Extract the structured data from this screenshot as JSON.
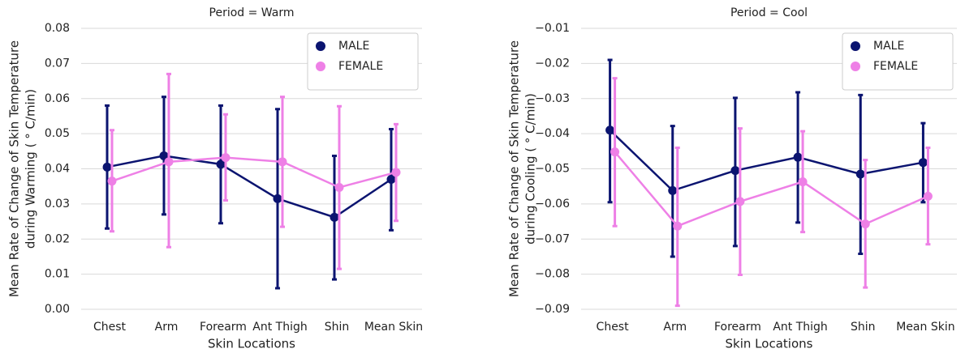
{
  "chart_data": [
    {
      "type": "pointplot",
      "title": "Period = Warm",
      "xlabel": "Skin Locations",
      "ylabel": [
        "Mean Rate of Change of Skin Temperature",
        "during Warming ( ° C/min)"
      ],
      "categories": [
        "Chest",
        "Arm",
        "Forearm",
        "Ant Thigh",
        "Shin",
        "Mean Skin"
      ],
      "ylim": [
        0,
        0.08
      ],
      "yticks": [
        {
          "value": 0,
          "label": "0.00"
        },
        0.01,
        0.02,
        0.03,
        0.04,
        0.05,
        0.06,
        0.07,
        0.08
      ],
      "grid": true,
      "legend": "upper right",
      "series": [
        {
          "name": "MALE",
          "color": "#0b1470",
          "values": [
            0.0405,
            0.0437,
            0.0413,
            0.0315,
            0.0262,
            0.037
          ],
          "lower": [
            0.023,
            0.027,
            0.0245,
            0.006,
            0.0085,
            0.0225
          ],
          "upper": [
            0.058,
            0.0605,
            0.058,
            0.057,
            0.0437,
            0.0513
          ]
        },
        {
          "name": "FEMALE",
          "color": "#ee80e6",
          "values": [
            0.0365,
            0.042,
            0.0432,
            0.042,
            0.0347,
            0.039
          ],
          "lower": [
            0.0222,
            0.0177,
            0.031,
            0.0235,
            0.0115,
            0.0252
          ],
          "upper": [
            0.051,
            0.067,
            0.0555,
            0.0605,
            0.0578,
            0.0527
          ]
        }
      ]
    },
    {
      "type": "pointplot",
      "title": "Period = Cool",
      "xlabel": "Skin Locations",
      "ylabel": [
        "Mean Rate of Change of Skin Temperature",
        "during Cooling ( ° C/min)"
      ],
      "categories": [
        "Chest",
        "Arm",
        "Forearm",
        "Ant Thigh",
        "Shin",
        "Mean Skin"
      ],
      "ylim": [
        -0.09,
        -0.01
      ],
      "yticks": [
        {
          "value": -0.09,
          "label": "−0.09"
        },
        {
          "value": -0.08,
          "label": "−0.08"
        },
        {
          "value": -0.07,
          "label": "−0.07"
        },
        {
          "value": -0.06,
          "label": "−0.06"
        },
        {
          "value": -0.05,
          "label": "−0.05"
        },
        {
          "value": -0.04,
          "label": "−0.04"
        },
        {
          "value": -0.03,
          "label": "−0.03"
        },
        {
          "value": -0.02,
          "label": "−0.02"
        },
        {
          "value": -0.01,
          "label": "−0.01"
        }
      ],
      "grid": true,
      "legend": "upper right",
      "series": [
        {
          "name": "MALE",
          "color": "#0b1470",
          "values": [
            -0.039,
            -0.0562,
            -0.0505,
            -0.0467,
            -0.0515,
            -0.0482
          ],
          "lower": [
            -0.0595,
            -0.075,
            -0.072,
            -0.0653,
            -0.0742,
            -0.0595
          ],
          "upper": [
            -0.019,
            -0.0378,
            -0.0298,
            -0.0282,
            -0.029,
            -0.037
          ]
        },
        {
          "name": "FEMALE",
          "color": "#ee80e6",
          "values": [
            -0.0452,
            -0.0663,
            -0.0593,
            -0.0537,
            -0.0657,
            -0.0578
          ],
          "lower": [
            -0.0663,
            -0.089,
            -0.0802,
            -0.068,
            -0.0838,
            -0.0715
          ],
          "upper": [
            -0.0242,
            -0.044,
            -0.0385,
            -0.0393,
            -0.0475,
            -0.044
          ]
        }
      ]
    }
  ]
}
